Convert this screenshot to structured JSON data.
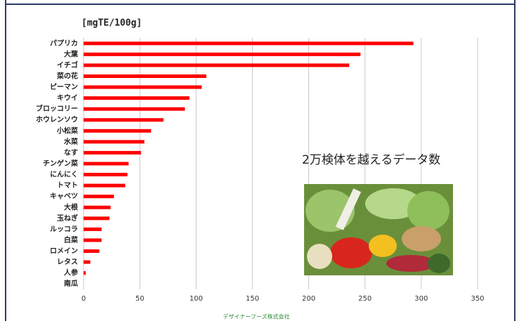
{
  "chart_data": {
    "type": "barh",
    "unit_label": "[mgTE/100g]",
    "categories": [
      "パプリカ",
      "大葉",
      "イチゴ",
      "菜の花",
      "ピーマン",
      "キウイ",
      "ブロッコリー",
      "ホウレンソウ",
      "小松菜",
      "水菜",
      "なす",
      "チンゲン菜",
      "にんにく",
      "トマト",
      "キャベツ",
      "大根",
      "玉ねぎ",
      "ルッコラ",
      "白菜",
      "ロメイン",
      "レタス",
      "人参",
      "南瓜"
    ],
    "values": [
      293,
      246,
      236,
      109,
      105,
      94,
      90,
      71,
      60,
      54,
      51,
      40,
      39,
      37,
      27,
      24,
      23,
      16,
      16,
      14,
      6,
      2,
      0
    ],
    "color": "#ff0000",
    "xlim": [
      0,
      350
    ],
    "xticks": [
      0,
      50,
      100,
      150,
      200,
      250,
      300,
      350
    ],
    "grid": true,
    "annotation": "2万検体を越えるデータ数",
    "footer": "デザイナーフーズ株式会社"
  }
}
